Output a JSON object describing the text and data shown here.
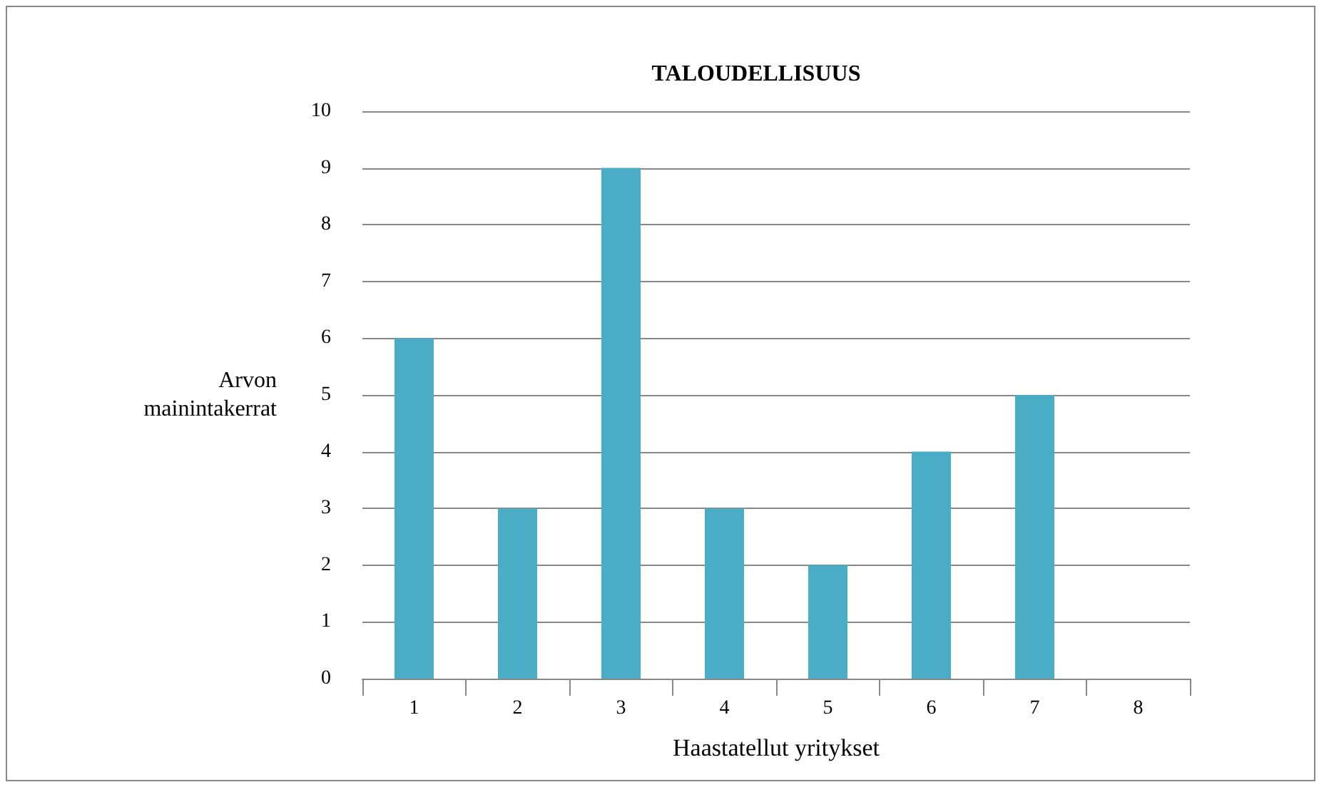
{
  "chart_data": {
    "type": "bar",
    "title": "TALOUDELLISUUS",
    "xlabel": "Haastatellut yritykset",
    "ylabel": "Arvon\nmainintakerrat",
    "categories": [
      "1",
      "2",
      "3",
      "4",
      "5",
      "6",
      "7",
      "8"
    ],
    "values": [
      6,
      3,
      9,
      3,
      2,
      4,
      5,
      0
    ],
    "color": "#4bacc6",
    "ylim": [
      0,
      10
    ],
    "yticks": [
      0,
      1,
      2,
      3,
      4,
      5,
      6,
      7,
      8,
      9,
      10
    ],
    "grid": "y"
  }
}
